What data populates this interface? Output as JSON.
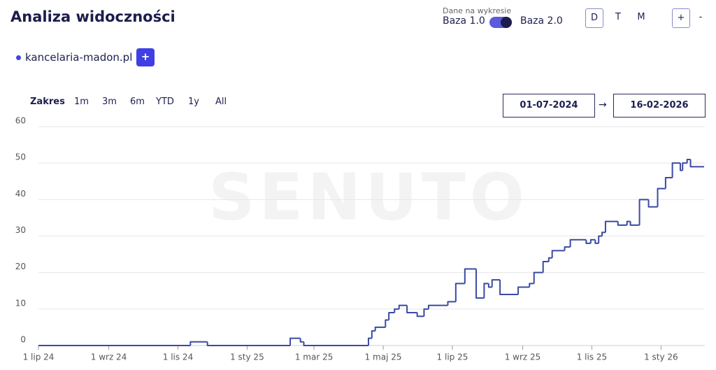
{
  "ui": {
    "title": "Analiza widoczności",
    "data_label": "Dane na wykresie",
    "base_left": "Baza 1.0",
    "base_right": "Baza 2.0",
    "granularity": [
      "D",
      "T",
      "M"
    ],
    "zoom_in": "+",
    "zoom_out": "-",
    "domain": "kancelaria-madon.pl",
    "add": "+",
    "range_label": "Zakres",
    "ranges": [
      "1m",
      "3m",
      "6m",
      "YTD",
      "1y",
      "All"
    ],
    "date_from": "01-07-2024",
    "arrow": "→",
    "date_to": "16-02-2026",
    "watermark": "SENUTO"
  },
  "chart_data": {
    "type": "line",
    "color": "#3a4aa3",
    "grid": true,
    "xlim": [
      "2024-07-01",
      "2026-02-16"
    ],
    "xticks": [
      {
        "value": "2024-07-01",
        "label": "1 lip 24"
      },
      {
        "value": "2024-09-01",
        "label": "1 wrz 24"
      },
      {
        "value": "2024-11-01",
        "label": "1 lis 24"
      },
      {
        "value": "2025-01-01",
        "label": "1 sty 25"
      },
      {
        "value": "2025-03-01",
        "label": "1 mar 25"
      },
      {
        "value": "2025-05-01",
        "label": "1 maj 25"
      },
      {
        "value": "2025-07-01",
        "label": "1 lip 25"
      },
      {
        "value": "2025-09-01",
        "label": "1 wrz 25"
      },
      {
        "value": "2025-11-01",
        "label": "1 lis 25"
      },
      {
        "value": "2026-01-01",
        "label": "1 sty 26"
      }
    ],
    "ylim": [
      0,
      60
    ],
    "yticks": [
      0,
      10,
      20,
      30,
      40,
      50,
      60
    ],
    "x": [
      "2024-07-01",
      "2024-11-12",
      "2024-11-27",
      "2025-02-08",
      "2025-02-17",
      "2025-02-20",
      "2025-04-18",
      "2025-04-21",
      "2025-04-24",
      "2025-05-03",
      "2025-05-06",
      "2025-05-11",
      "2025-05-15",
      "2025-05-22",
      "2025-05-31",
      "2025-06-06",
      "2025-06-10",
      "2025-06-27",
      "2025-07-04",
      "2025-07-12",
      "2025-07-22",
      "2025-07-29",
      "2025-08-02",
      "2025-08-05",
      "2025-08-12",
      "2025-08-28",
      "2025-09-07",
      "2025-09-11",
      "2025-09-19",
      "2025-09-24",
      "2025-09-27",
      "2025-10-08",
      "2025-10-13",
      "2025-10-27",
      "2025-10-31",
      "2025-11-04",
      "2025-11-07",
      "2025-11-10",
      "2025-11-13",
      "2025-11-24",
      "2025-12-02",
      "2025-12-05",
      "2025-12-13",
      "2025-12-21",
      "2025-12-29",
      "2026-01-05",
      "2026-01-11",
      "2026-01-18",
      "2026-01-20",
      "2026-01-24",
      "2026-01-27",
      "2026-02-08"
    ],
    "values": [
      0,
      1,
      0,
      2,
      1,
      0,
      2,
      4,
      5,
      7,
      9,
      10,
      11,
      9,
      8,
      10,
      11,
      12,
      17,
      21,
      13,
      17,
      16,
      18,
      14,
      16,
      17,
      20,
      23,
      24,
      26,
      27,
      29,
      28,
      29,
      28,
      30,
      31,
      34,
      33,
      34,
      33,
      40,
      38,
      43,
      46,
      50,
      48,
      50,
      51,
      49,
      49
    ]
  }
}
